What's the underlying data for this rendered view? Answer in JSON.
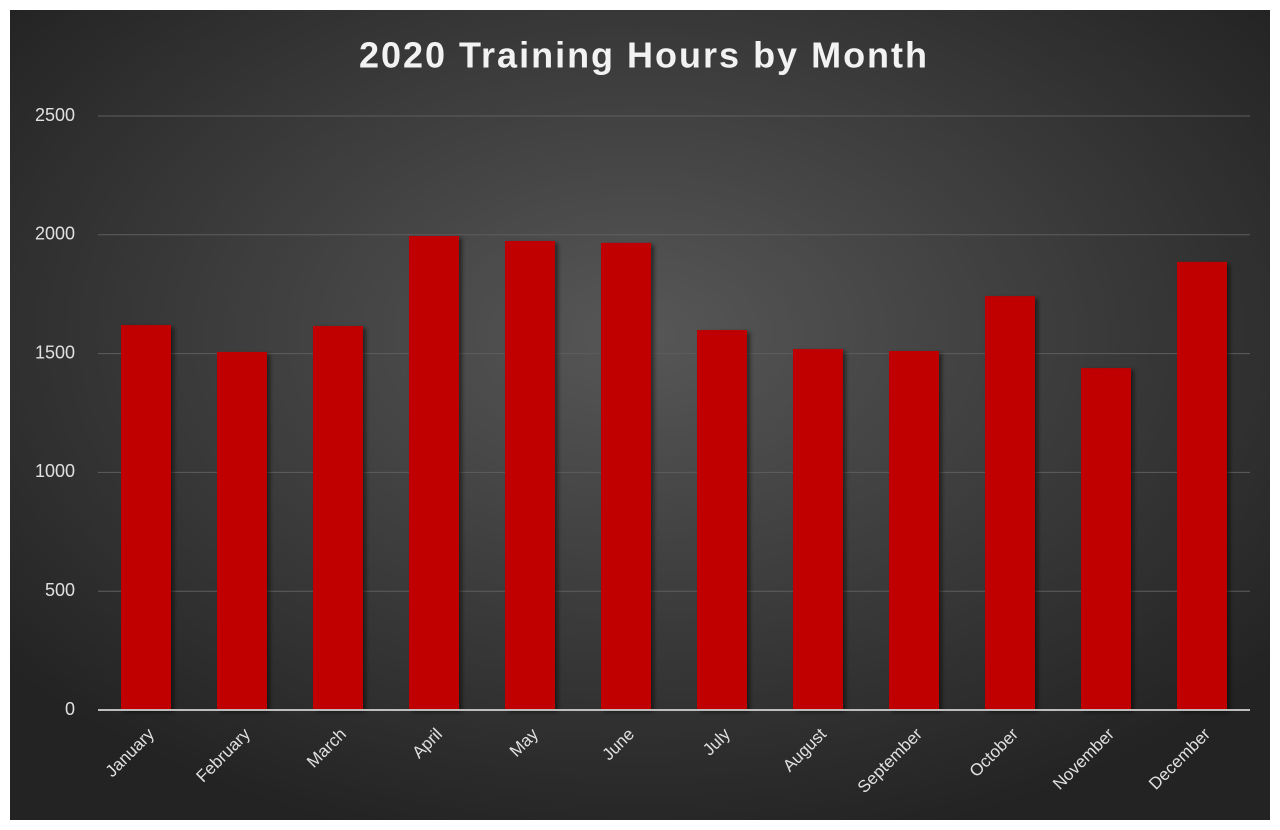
{
  "chart_data": {
    "type": "bar",
    "title": "2020 Training Hours by Month",
    "categories": [
      "January",
      "February",
      "March",
      "April",
      "May",
      "June",
      "July",
      "August",
      "September",
      "October",
      "November",
      "December"
    ],
    "values": [
      1620,
      1507,
      1616,
      1995,
      1974,
      1966,
      1599,
      1519,
      1511,
      1742,
      1439,
      1886
    ],
    "color": "#c00000",
    "ylim": [
      0,
      2500
    ],
    "yticks": [
      0,
      500,
      1000,
      1500,
      2000,
      2500
    ],
    "grid": true
  }
}
